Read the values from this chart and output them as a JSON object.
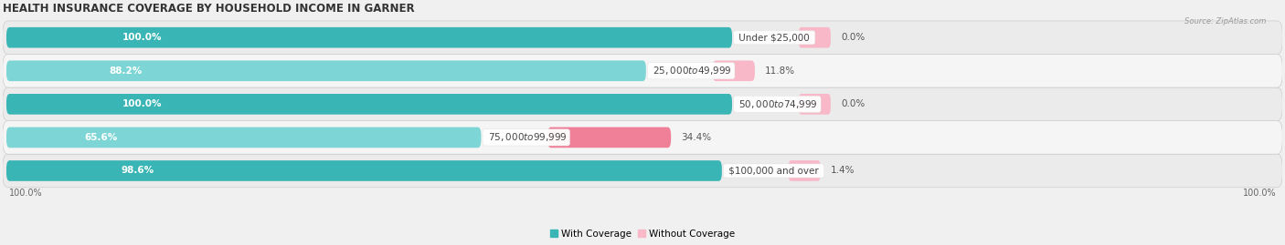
{
  "title": "HEALTH INSURANCE COVERAGE BY HOUSEHOLD INCOME IN GARNER",
  "source": "Source: ZipAtlas.com",
  "categories": [
    "Under $25,000",
    "$25,000 to $49,999",
    "$50,000 to $74,999",
    "$75,000 to $99,999",
    "$100,000 and over"
  ],
  "with_coverage": [
    100.0,
    88.2,
    100.0,
    65.6,
    98.6
  ],
  "without_coverage": [
    0.0,
    11.8,
    0.0,
    34.4,
    1.4
  ],
  "color_with": "#3ab5b5",
  "color_with_light": "#7dd5d5",
  "color_without": "#f08098",
  "color_without_light": "#f8b8c8",
  "bar_height": 0.62,
  "row_bg": "#ebebeb",
  "row_bg2": "#f5f5f5",
  "title_fontsize": 8.5,
  "label_fontsize": 7.5,
  "legend_fontsize": 7.5,
  "axis_label_fontsize": 7
}
